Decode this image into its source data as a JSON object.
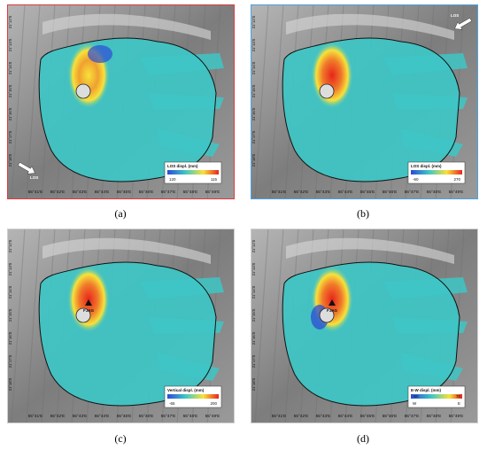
{
  "panels": [
    {
      "id": "a",
      "caption": "(a)",
      "border_color": "#e03a3a",
      "legend": {
        "title": "LOS displ. (mm)",
        "min": "120",
        "max": "115"
      },
      "los_label": "LOS",
      "los_corner": "bottom-left",
      "station": ""
    },
    {
      "id": "b",
      "caption": "(b)",
      "border_color": "#4aa3e0",
      "legend": {
        "title": "LOS displ. (mm)",
        "min": "-60",
        "max": "270"
      },
      "los_label": "LOS",
      "los_corner": "top-right",
      "station": ""
    },
    {
      "id": "c",
      "caption": "(c)",
      "border_color": "#cfcfcf",
      "legend": {
        "title": "Vertical displ. (mm)",
        "min": "-65",
        "max": "200"
      },
      "los_label": "",
      "los_corner": "",
      "station": "FJAG"
    },
    {
      "id": "d",
      "caption": "(d)",
      "border_color": "#cfcfcf",
      "legend": {
        "title": "E-W displ. (mm)",
        "min": "W",
        "max": "E",
        "min_val": "-50",
        "max_val": "70"
      },
      "los_label": "",
      "los_corner": "",
      "station": "FJAG"
    }
  ],
  "latitude_ticks": [
    "21°12'S",
    "21°13'S",
    "21°14'S",
    "21°15'S",
    "21°16'S",
    "21°17'S",
    "21°18'S"
  ],
  "longitude_ticks": [
    "55°41'E",
    "55°42'E",
    "55°43'E",
    "55°44'E",
    "55°45'E",
    "55°46'E",
    "55°47'E",
    "55°48'E",
    "55°49'E"
  ],
  "colors": {
    "low": "#2b4bd6",
    "mid": "#3ec6c6",
    "high": "#f7e23a",
    "peak": "#e8241c",
    "hillshade": "#8a8a8a"
  }
}
